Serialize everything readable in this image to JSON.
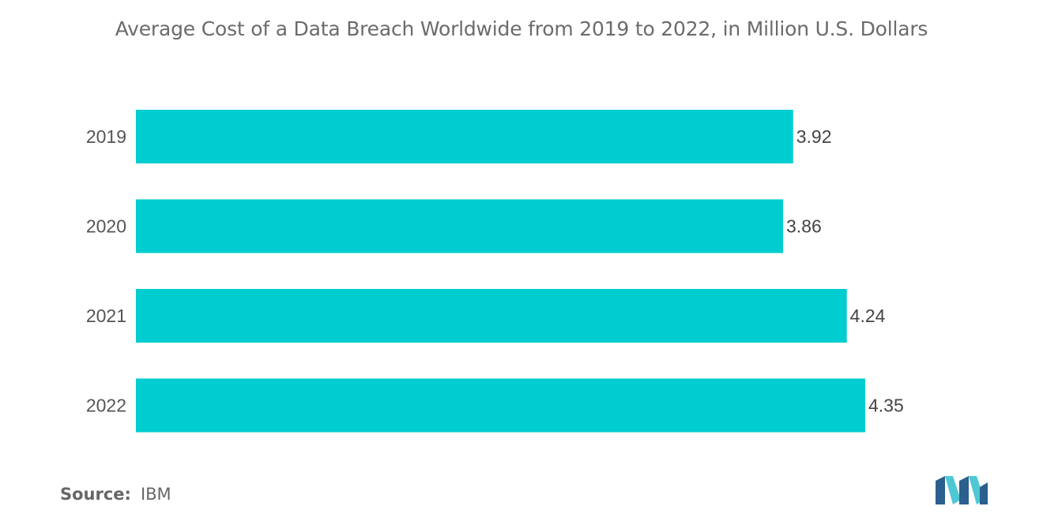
{
  "header": {
    "title": "Average Cost of a Data Breach Worldwide from 2019 to 2022, in Million U.S. Dollars"
  },
  "chart_data": {
    "type": "bar",
    "orientation": "horizontal",
    "title": "Average Cost of a Data Breach Worldwide from 2019 to 2022, in Million U.S. Dollars",
    "categories": [
      "2019",
      "2020",
      "2021",
      "2022"
    ],
    "values": [
      3.92,
      3.86,
      4.24,
      4.35
    ],
    "value_labels": [
      "3.92",
      "3.86",
      "4.24",
      "4.35"
    ],
    "xlabel": "",
    "ylabel": "",
    "xlim": [
      0,
      4.35
    ],
    "grid": false,
    "legend": "none",
    "bar_color": "#00cdd0"
  },
  "footer": {
    "source_label": "Source:",
    "source_value": "IBM",
    "logo_icon": "mordor-intelligence-logo-icon",
    "logo_colors": [
      "#2b5f8e",
      "#4ec8d4"
    ]
  }
}
